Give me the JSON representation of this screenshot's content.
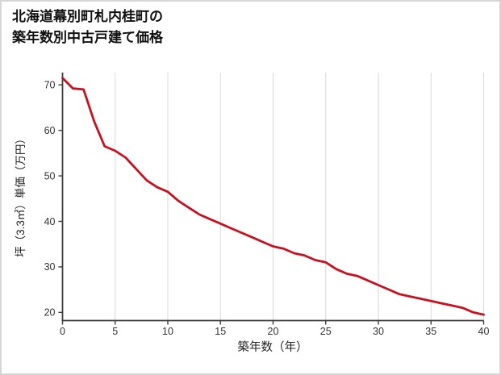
{
  "frame": {
    "background": "#ffffff",
    "border_color": "#d6d6d6"
  },
  "title": {
    "line1": "北海道幕別町札内桂町の",
    "line2": "築年数別中古戸建て価格"
  },
  "chart_data": {
    "type": "line",
    "title": "北海道幕別町札内桂町の築年数別中古戸建て価格",
    "xlabel": "築年数（年）",
    "ylabel": "坪（3.3㎡）単価（万円）",
    "xlim": [
      0,
      40
    ],
    "ylim": [
      18.2,
      72.7
    ],
    "x_ticks": [
      0,
      5,
      10,
      15,
      20,
      25,
      30,
      35,
      40
    ],
    "y_ticks": [
      20,
      30,
      40,
      50,
      60,
      70
    ],
    "grid": "vertical",
    "grid_color": "#d9d9d9",
    "axis_color": "#3c3c3c",
    "tick_label_color": "#333333",
    "line_color": "#c8101e",
    "legend": "none",
    "series": [
      {
        "x": [
          0,
          1,
          2,
          3,
          4,
          5,
          6,
          7,
          8,
          9,
          10,
          11,
          12,
          13,
          14,
          15,
          16,
          17,
          18,
          19,
          20,
          21,
          22,
          23,
          24,
          25,
          26,
          27,
          28,
          29,
          30,
          31,
          32,
          33,
          34,
          35,
          36,
          37,
          38,
          39,
          40
        ],
        "values": [
          71.5,
          69.2,
          69.0,
          62.0,
          56.5,
          55.5,
          54.0,
          51.5,
          49.0,
          47.5,
          46.5,
          44.5,
          43.0,
          41.5,
          40.5,
          39.5,
          38.5,
          37.5,
          36.5,
          35.5,
          34.5,
          34.0,
          33.0,
          32.5,
          31.5,
          31.0,
          29.5,
          28.5,
          28.0,
          27.0,
          26.0,
          25.0,
          24.0,
          23.5,
          23.0,
          22.5,
          22.0,
          21.5,
          21.0,
          20.0,
          19.5
        ]
      }
    ]
  }
}
